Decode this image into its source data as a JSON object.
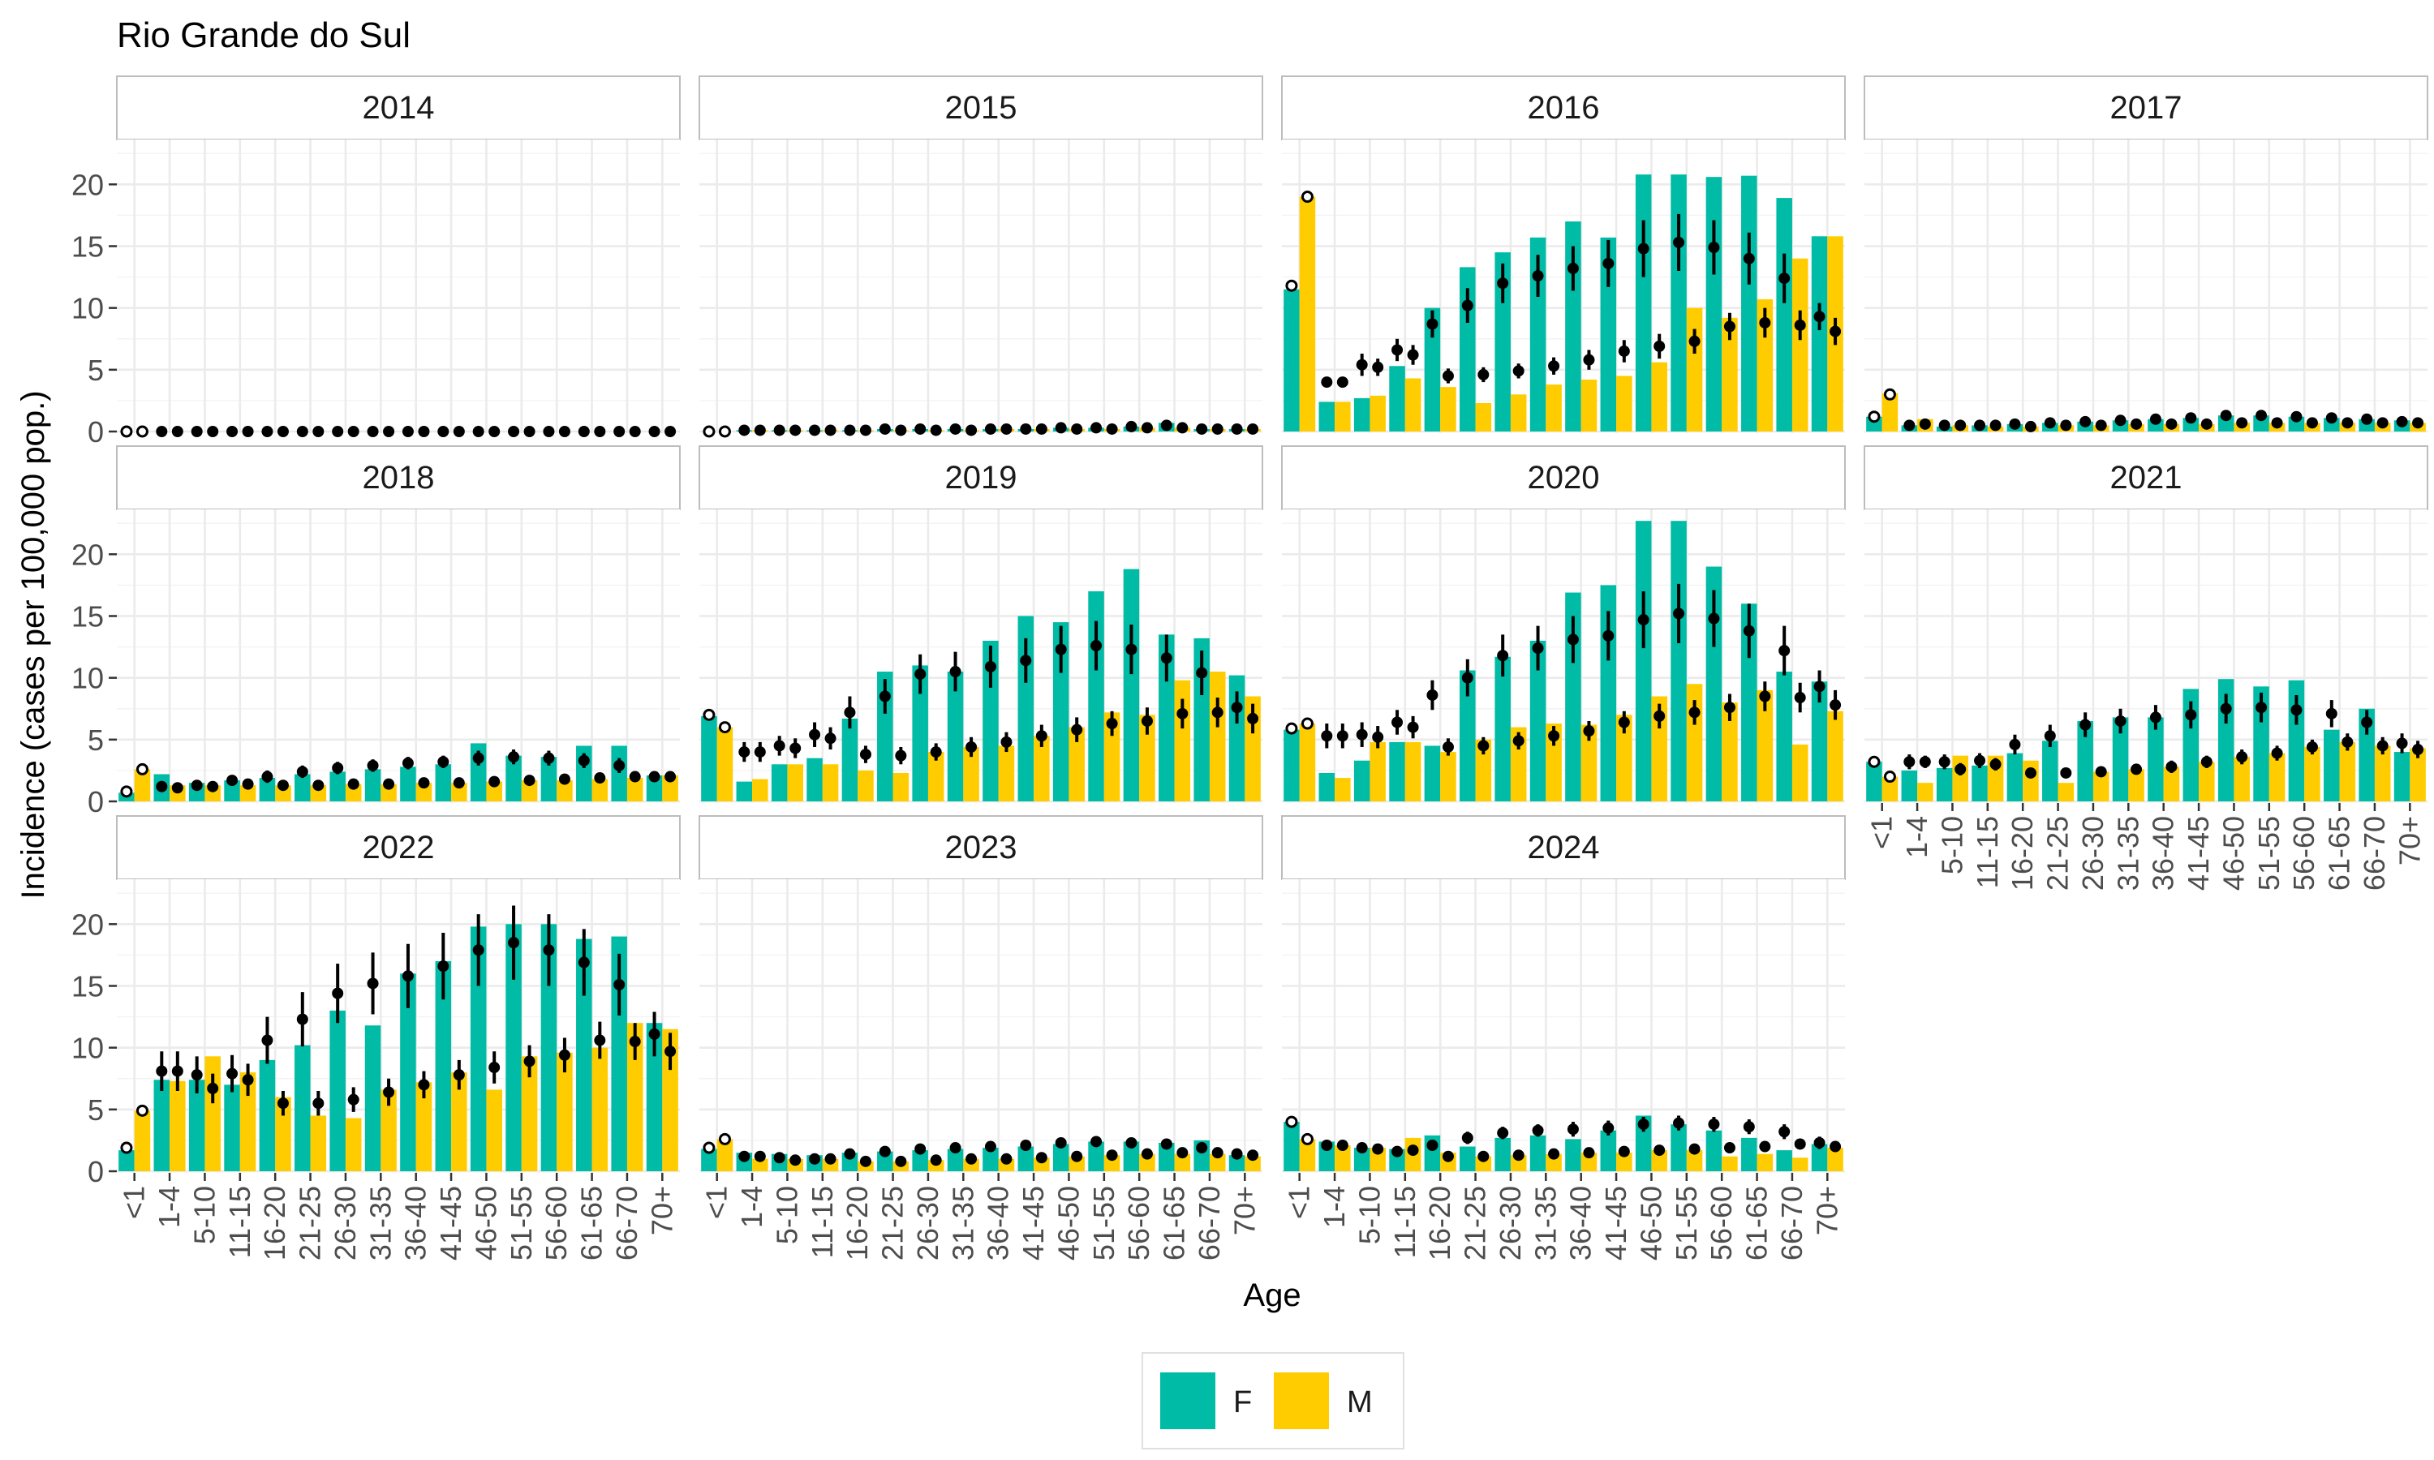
{
  "title": "Rio Grande do Sul",
  "chart_data": {
    "type": "bar",
    "title": "Rio Grande do Sul",
    "xlabel": "Age",
    "ylabel": "Incidence (cases per 100,000 pop.)",
    "ylim": [
      0,
      23.5
    ],
    "yticks": [
      0,
      5,
      10,
      15,
      20
    ],
    "grid": true,
    "legend_position": "bottom",
    "categories": [
      "<1",
      "1-4",
      "5-10",
      "11-15",
      "16-20",
      "21-25",
      "26-30",
      "31-35",
      "36-40",
      "41-45",
      "46-50",
      "51-55",
      "56-60",
      "61-65",
      "66-70",
      "70+"
    ],
    "series_colors": {
      "F": "#00BBA5",
      "M": "#FFCC00"
    },
    "legend": [
      {
        "name": "F",
        "color": "#00BBA5"
      },
      {
        "name": "M",
        "color": "#FFCC00"
      }
    ],
    "facets": [
      {
        "label": "2014",
        "F": [
          0.0,
          0.0,
          0.0,
          0.0,
          0.0,
          0.0,
          0.0,
          0.0,
          0.0,
          0.0,
          0.0,
          0.0,
          0.0,
          0.0,
          0.0,
          0.0
        ],
        "M": [
          0.0,
          0.0,
          0.0,
          0.0,
          0.0,
          0.0,
          0.0,
          0.0,
          0.0,
          0.0,
          0.0,
          0.0,
          0.0,
          0.0,
          0.0,
          0.0
        ],
        "estF": [
          0.0,
          0.0,
          0.0,
          0.0,
          0.0,
          0.0,
          0.0,
          0.0,
          0.0,
          0.0,
          0.0,
          0.0,
          0.0,
          0.0,
          0.0,
          0.0
        ],
        "estM": [
          0.0,
          0.0,
          0.0,
          0.0,
          0.0,
          0.0,
          0.0,
          0.0,
          0.0,
          0.0,
          0.0,
          0.0,
          0.0,
          0.0,
          0.0,
          0.0
        ],
        "errF": [
          0,
          0,
          0,
          0,
          0,
          0,
          0,
          0,
          0,
          0,
          0,
          0,
          0,
          0,
          0,
          0
        ],
        "errM": [
          0,
          0,
          0,
          0,
          0,
          0,
          0,
          0,
          0,
          0,
          0,
          0,
          0,
          0,
          0,
          0
        ]
      },
      {
        "label": "2015",
        "F": [
          0.0,
          0.1,
          0.1,
          0.1,
          0.1,
          0.2,
          0.2,
          0.2,
          0.2,
          0.2,
          0.3,
          0.3,
          0.4,
          0.7,
          0.2,
          0.2
        ],
        "M": [
          0.0,
          0.1,
          0.1,
          0.1,
          0.1,
          0.1,
          0.1,
          0.1,
          0.2,
          0.2,
          0.2,
          0.2,
          0.3,
          0.3,
          0.2,
          0.2
        ],
        "estF": [
          0.0,
          0.1,
          0.1,
          0.1,
          0.1,
          0.2,
          0.2,
          0.2,
          0.2,
          0.2,
          0.3,
          0.3,
          0.4,
          0.5,
          0.2,
          0.2
        ],
        "estM": [
          0.0,
          0.1,
          0.1,
          0.1,
          0.1,
          0.1,
          0.1,
          0.1,
          0.2,
          0.2,
          0.2,
          0.2,
          0.3,
          0.3,
          0.2,
          0.2
        ],
        "errF": [
          0,
          0,
          0,
          0,
          0,
          0,
          0,
          0,
          0,
          0,
          0,
          0,
          0,
          0,
          0,
          0
        ],
        "errM": [
          0,
          0,
          0,
          0,
          0,
          0,
          0,
          0,
          0,
          0,
          0,
          0,
          0,
          0,
          0,
          0
        ]
      },
      {
        "label": "2016",
        "F": [
          11.5,
          2.4,
          2.7,
          5.3,
          10.0,
          13.3,
          14.5,
          15.7,
          17.0,
          15.7,
          20.8,
          20.8,
          20.6,
          20.7,
          18.9,
          15.8
        ],
        "M": [
          19.0,
          2.4,
          2.9,
          4.3,
          3.6,
          2.3,
          3.0,
          3.8,
          4.2,
          4.5,
          5.6,
          10.0,
          9.2,
          10.7,
          14.0,
          15.8
        ],
        "estF": [
          11.8,
          4.0,
          5.4,
          6.6,
          8.7,
          10.2,
          12.0,
          12.6,
          13.2,
          13.6,
          14.8,
          15.3,
          14.9,
          14.0,
          12.4,
          9.3
        ],
        "estM": [
          19.0,
          4.0,
          5.2,
          6.2,
          4.5,
          4.6,
          4.9,
          5.3,
          5.8,
          6.5,
          6.9,
          7.3,
          8.5,
          8.8,
          8.6,
          8.1
        ],
        "errF": [
          0,
          0.4,
          0.9,
          0.9,
          1.1,
          1.4,
          1.6,
          1.7,
          1.8,
          1.9,
          2.3,
          2.3,
          2.2,
          2.1,
          2.0,
          1.1
        ],
        "errM": [
          0,
          0.4,
          0.7,
          0.8,
          0.6,
          0.6,
          0.6,
          0.7,
          0.8,
          0.9,
          1.0,
          1.0,
          1.1,
          1.2,
          1.2,
          1.1
        ]
      },
      {
        "label": "2017",
        "F": [
          1.2,
          0.5,
          0.4,
          0.5,
          0.6,
          0.7,
          0.8,
          0.9,
          1.0,
          1.1,
          1.3,
          1.3,
          1.2,
          1.1,
          1.0,
          0.9
        ],
        "M": [
          3.1,
          1.0,
          0.5,
          0.4,
          0.4,
          0.5,
          0.5,
          0.6,
          0.6,
          0.6,
          0.7,
          0.7,
          0.7,
          0.7,
          0.7,
          0.7
        ],
        "estF": [
          1.2,
          0.5,
          0.5,
          0.5,
          0.6,
          0.7,
          0.8,
          0.9,
          1.0,
          1.1,
          1.3,
          1.3,
          1.2,
          1.1,
          1.0,
          0.8
        ],
        "estM": [
          3.0,
          0.6,
          0.5,
          0.5,
          0.4,
          0.5,
          0.5,
          0.6,
          0.6,
          0.6,
          0.7,
          0.7,
          0.7,
          0.7,
          0.7,
          0.7
        ],
        "errF": [
          0,
          0.2,
          0.2,
          0.2,
          0.2,
          0.2,
          0.2,
          0.3,
          0.3,
          0.3,
          0.3,
          0.3,
          0.3,
          0.3,
          0.3,
          0.3
        ],
        "errM": [
          0,
          0.2,
          0.2,
          0.2,
          0.2,
          0.2,
          0.2,
          0.2,
          0.2,
          0.2,
          0.2,
          0.2,
          0.2,
          0.2,
          0.2,
          0.2
        ]
      },
      {
        "label": "2018",
        "F": [
          0.7,
          2.2,
          1.5,
          1.7,
          1.9,
          2.2,
          2.4,
          2.6,
          2.8,
          3.0,
          4.7,
          3.7,
          3.6,
          4.5,
          4.5,
          2.1
        ],
        "M": [
          2.6,
          1.3,
          1.3,
          1.3,
          1.3,
          1.3,
          1.4,
          1.4,
          1.5,
          1.5,
          1.6,
          1.7,
          1.7,
          1.8,
          1.9,
          2.1
        ],
        "estF": [
          0.8,
          1.2,
          1.3,
          1.7,
          2.0,
          2.4,
          2.7,
          2.9,
          3.1,
          3.2,
          3.5,
          3.6,
          3.5,
          3.3,
          2.9,
          2.0
        ],
        "estM": [
          2.6,
          1.1,
          1.2,
          1.4,
          1.3,
          1.3,
          1.4,
          1.4,
          1.5,
          1.5,
          1.6,
          1.7,
          1.8,
          1.9,
          2.0,
          2.0
        ],
        "errF": [
          0,
          0.4,
          0.4,
          0.4,
          0.5,
          0.5,
          0.5,
          0.5,
          0.5,
          0.5,
          0.6,
          0.6,
          0.6,
          0.6,
          0.6,
          0.4
        ],
        "errM": [
          0,
          0.3,
          0.3,
          0.3,
          0.3,
          0.3,
          0.3,
          0.3,
          0.3,
          0.3,
          0.4,
          0.4,
          0.4,
          0.4,
          0.4,
          0.4
        ]
      },
      {
        "label": "2019",
        "F": [
          6.9,
          1.6,
          3.0,
          3.5,
          6.7,
          10.5,
          11.0,
          10.5,
          13.0,
          15.0,
          14.5,
          17.0,
          18.8,
          13.5,
          13.2,
          10.2
        ],
        "M": [
          6.0,
          1.8,
          3.0,
          3.0,
          2.5,
          2.3,
          4.0,
          4.4,
          4.5,
          5.3,
          6.0,
          7.2,
          7.0,
          9.8,
          10.5,
          8.5
        ],
        "estF": [
          7.0,
          4.0,
          4.5,
          5.4,
          7.2,
          8.5,
          10.3,
          10.5,
          10.9,
          11.4,
          12.3,
          12.6,
          12.3,
          11.6,
          10.4,
          7.6
        ],
        "estM": [
          6.0,
          4.0,
          4.3,
          5.1,
          3.8,
          3.7,
          4.0,
          4.4,
          4.8,
          5.3,
          5.8,
          6.3,
          6.5,
          7.1,
          7.2,
          6.7
        ],
        "errF": [
          0,
          0.8,
          0.8,
          1.0,
          1.3,
          1.4,
          1.6,
          1.6,
          1.7,
          1.8,
          1.9,
          2.0,
          2.0,
          1.9,
          1.8,
          1.3
        ],
        "errM": [
          0,
          0.8,
          0.8,
          0.9,
          0.7,
          0.7,
          0.7,
          0.8,
          0.8,
          0.9,
          1.0,
          1.0,
          1.1,
          1.2,
          1.2,
          1.2
        ]
      },
      {
        "label": "2020",
        "F": [
          5.8,
          2.3,
          3.3,
          4.8,
          4.5,
          10.6,
          11.7,
          13.0,
          16.9,
          17.5,
          22.7,
          22.7,
          19.0,
          16.0,
          10.5,
          9.7
        ],
        "M": [
          6.3,
          1.9,
          4.8,
          4.8,
          4.0,
          5.0,
          6.0,
          6.3,
          6.2,
          7.0,
          8.5,
          9.5,
          8.0,
          9.0,
          4.6,
          7.3
        ],
        "estF": [
          5.9,
          5.3,
          5.4,
          6.4,
          8.6,
          10.0,
          11.8,
          12.4,
          13.1,
          13.4,
          14.7,
          15.2,
          14.8,
          13.8,
          12.2,
          9.3
        ],
        "estM": [
          6.3,
          5.3,
          5.2,
          6.0,
          4.4,
          4.5,
          4.9,
          5.3,
          5.7,
          6.4,
          6.9,
          7.2,
          7.6,
          8.5,
          8.4,
          7.8
        ],
        "errF": [
          0,
          1.0,
          1.0,
          1.0,
          1.2,
          1.5,
          1.7,
          1.8,
          1.9,
          2.0,
          2.3,
          2.4,
          2.3,
          2.2,
          2.0,
          1.3
        ],
        "errM": [
          0,
          1.0,
          0.9,
          0.9,
          0.7,
          0.7,
          0.7,
          0.8,
          0.8,
          0.9,
          1.0,
          1.0,
          1.1,
          1.2,
          1.2,
          1.2
        ]
      },
      {
        "label": "2021",
        "F": [
          3.2,
          2.5,
          2.7,
          2.9,
          3.9,
          4.9,
          6.5,
          6.8,
          6.8,
          9.1,
          9.9,
          9.3,
          9.8,
          5.8,
          7.5,
          4.0
        ],
        "M": [
          2.0,
          1.5,
          3.7,
          3.7,
          3.3,
          1.5,
          2.4,
          2.6,
          2.8,
          3.2,
          3.6,
          3.9,
          4.4,
          4.8,
          4.5,
          4.3
        ],
        "estF": [
          3.2,
          3.2,
          3.2,
          3.3,
          4.6,
          5.3,
          6.2,
          6.5,
          6.8,
          7.0,
          7.5,
          7.6,
          7.4,
          7.1,
          6.4,
          4.7
        ],
        "estM": [
          2.0,
          3.2,
          2.6,
          3.0,
          2.3,
          2.3,
          2.4,
          2.6,
          2.8,
          3.2,
          3.6,
          3.9,
          4.4,
          4.8,
          4.5,
          4.2
        ],
        "errF": [
          0,
          0.6,
          0.6,
          0.6,
          0.8,
          0.9,
          1.0,
          1.0,
          1.0,
          1.1,
          1.2,
          1.2,
          1.2,
          1.1,
          1.0,
          0.8
        ],
        "errM": [
          0,
          0.5,
          0.5,
          0.5,
          0.4,
          0.4,
          0.4,
          0.4,
          0.5,
          0.5,
          0.6,
          0.6,
          0.6,
          0.7,
          0.7,
          0.7
        ]
      },
      {
        "label": "2022",
        "F": [
          1.7,
          7.4,
          7.4,
          7.0,
          9.0,
          10.2,
          13.0,
          11.8,
          16.0,
          17.0,
          19.8,
          20.0,
          20.0,
          18.8,
          19.0,
          12.0
        ],
        "M": [
          4.9,
          7.3,
          9.3,
          8.0,
          6.0,
          4.5,
          4.3,
          6.6,
          7.2,
          8.0,
          6.6,
          9.3,
          9.6,
          10.0,
          12.0,
          11.5
        ],
        "estF": [
          1.9,
          8.1,
          7.8,
          7.9,
          10.6,
          12.3,
          14.4,
          15.2,
          15.8,
          16.6,
          17.9,
          18.5,
          17.9,
          16.9,
          15.1,
          11.1
        ],
        "estM": [
          4.9,
          8.1,
          6.7,
          7.4,
          5.5,
          5.5,
          5.8,
          6.4,
          7.0,
          7.8,
          8.4,
          8.9,
          9.4,
          10.6,
          10.5,
          9.7
        ],
        "errF": [
          0,
          1.6,
          1.5,
          1.5,
          1.9,
          2.2,
          2.4,
          2.5,
          2.6,
          2.7,
          2.9,
          3.0,
          2.9,
          2.7,
          2.5,
          1.8
        ],
        "errM": [
          0,
          1.6,
          1.2,
          1.3,
          1.0,
          1.0,
          1.0,
          1.1,
          1.1,
          1.2,
          1.3,
          1.3,
          1.4,
          1.5,
          1.5,
          1.5
        ]
      },
      {
        "label": "2023",
        "F": [
          1.8,
          1.5,
          1.4,
          1.3,
          1.5,
          1.6,
          1.7,
          1.8,
          1.9,
          2.0,
          2.2,
          2.4,
          2.4,
          2.3,
          2.5,
          1.3
        ],
        "M": [
          2.6,
          1.0,
          1.0,
          1.0,
          0.8,
          0.8,
          0.9,
          1.0,
          1.0,
          1.1,
          1.2,
          1.3,
          1.4,
          1.4,
          1.4,
          1.2
        ],
        "estF": [
          1.9,
          1.2,
          1.1,
          1.0,
          1.4,
          1.6,
          1.8,
          1.9,
          2.0,
          2.1,
          2.3,
          2.4,
          2.3,
          2.2,
          1.9,
          1.4
        ],
        "estM": [
          2.6,
          1.2,
          0.9,
          1.0,
          0.8,
          0.8,
          0.9,
          1.0,
          1.0,
          1.1,
          1.2,
          1.3,
          1.4,
          1.5,
          1.5,
          1.3
        ],
        "errF": [
          0,
          0.3,
          0.3,
          0.3,
          0.3,
          0.3,
          0.4,
          0.4,
          0.4,
          0.4,
          0.4,
          0.4,
          0.4,
          0.4,
          0.4,
          0.3
        ],
        "errM": [
          0,
          0.3,
          0.2,
          0.2,
          0.2,
          0.2,
          0.2,
          0.2,
          0.2,
          0.2,
          0.3,
          0.3,
          0.3,
          0.3,
          0.3,
          0.3
        ]
      },
      {
        "label": "2024",
        "F": [
          4.0,
          2.4,
          1.9,
          1.8,
          2.9,
          2.0,
          2.7,
          2.9,
          2.6,
          3.3,
          4.5,
          3.8,
          3.3,
          2.7,
          1.7,
          2.2
        ],
        "M": [
          2.6,
          2.1,
          1.9,
          2.7,
          1.5,
          1.2,
          1.3,
          1.4,
          1.5,
          1.5,
          1.7,
          1.7,
          1.2,
          1.4,
          1.1,
          1.9
        ],
        "estF": [
          4.0,
          2.1,
          1.9,
          1.6,
          2.1,
          2.7,
          3.1,
          3.3,
          3.4,
          3.5,
          3.8,
          3.9,
          3.8,
          3.6,
          3.2,
          2.3
        ],
        "estM": [
          2.6,
          2.1,
          1.8,
          1.7,
          1.2,
          1.2,
          1.3,
          1.4,
          1.5,
          1.6,
          1.7,
          1.8,
          1.9,
          2.0,
          2.2,
          2.0
        ],
        "errF": [
          0,
          0.4,
          0.4,
          0.4,
          0.4,
          0.5,
          0.5,
          0.5,
          0.6,
          0.6,
          0.6,
          0.6,
          0.6,
          0.6,
          0.6,
          0.5
        ],
        "errM": [
          0,
          0.3,
          0.3,
          0.3,
          0.3,
          0.3,
          0.3,
          0.3,
          0.3,
          0.3,
          0.3,
          0.3,
          0.3,
          0.4,
          0.4,
          0.4
        ]
      }
    ]
  }
}
